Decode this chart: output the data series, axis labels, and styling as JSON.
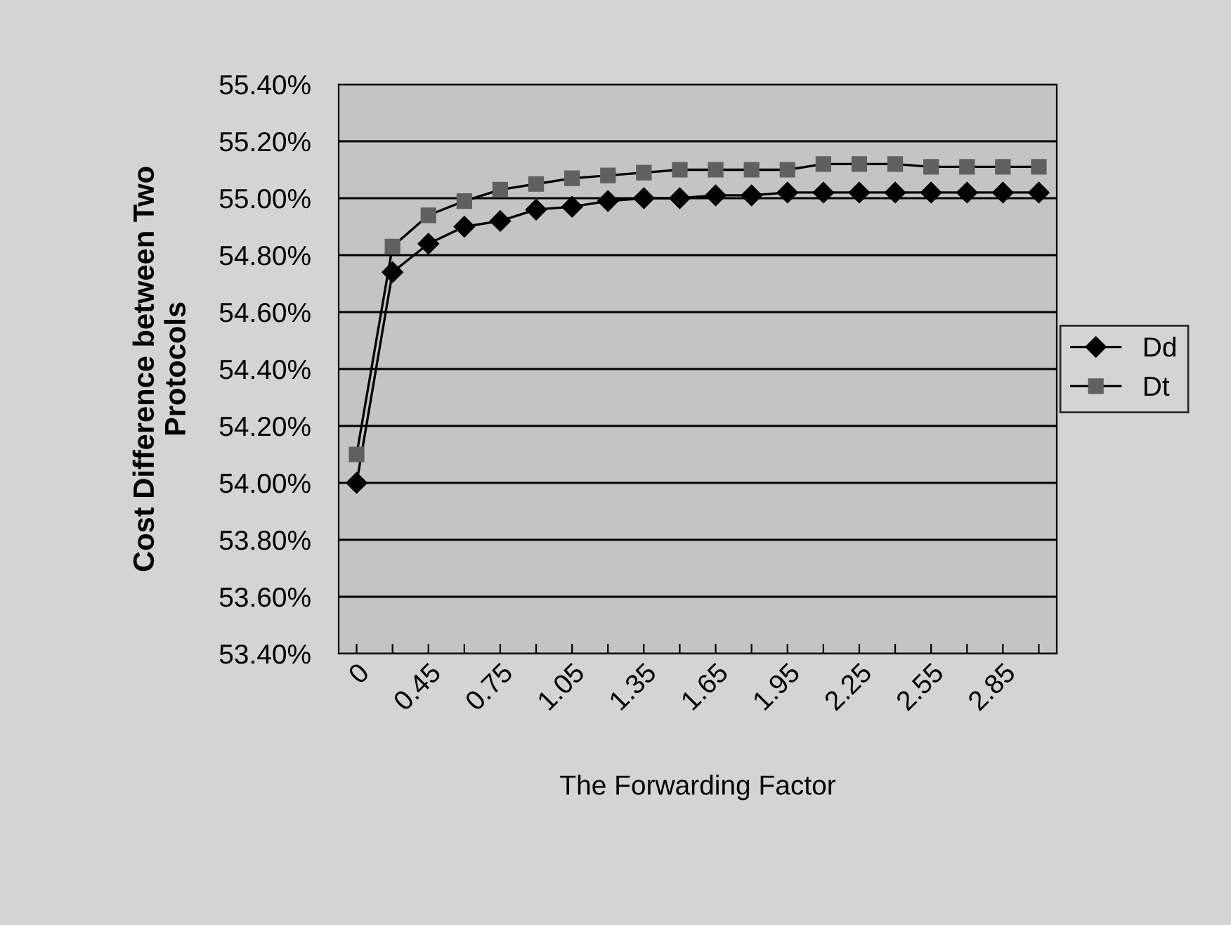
{
  "chart_data": {
    "type": "line",
    "xlabel": "The Forwarding Factor",
    "ylabel": "Cost Difference between Two\nProtocols",
    "categories": [
      "0",
      null,
      "0.45",
      null,
      "0.75",
      null,
      "1.05",
      null,
      "1.35",
      null,
      "1.65",
      null,
      "1.95",
      null,
      "2.25",
      null,
      "2.55",
      null,
      "2.85",
      null
    ],
    "series": [
      {
        "name": "Dd",
        "color": "#000000",
        "marker": "diamond",
        "values": [
          54.0,
          54.74,
          54.84,
          54.9,
          54.92,
          54.96,
          54.97,
          54.99,
          55.0,
          55.0,
          55.01,
          55.01,
          55.02,
          55.02,
          55.02,
          55.02,
          55.02,
          55.02,
          55.02,
          55.02
        ]
      },
      {
        "name": "Dt",
        "color": "#606060",
        "marker": "square",
        "values": [
          54.1,
          54.83,
          54.94,
          54.99,
          55.03,
          55.05,
          55.07,
          55.08,
          55.09,
          55.1,
          55.1,
          55.1,
          55.1,
          55.12,
          55.12,
          55.12,
          55.11,
          55.11,
          55.11,
          55.11
        ]
      }
    ],
    "ylim": [
      53.4,
      55.4
    ],
    "yticks": [
      {
        "value": 53.4,
        "label": "53.40%"
      },
      {
        "value": 53.6,
        "label": "53.60%"
      },
      {
        "value": 53.8,
        "label": "53.80%"
      },
      {
        "value": 54.0,
        "label": "54.00%"
      },
      {
        "value": 54.2,
        "label": "54.20%"
      },
      {
        "value": 54.4,
        "label": "54.40%"
      },
      {
        "value": 54.6,
        "label": "54.60%"
      },
      {
        "value": 54.8,
        "label": "54.80%"
      },
      {
        "value": 55.0,
        "label": "55.00%"
      },
      {
        "value": 55.2,
        "label": "55.20%"
      },
      {
        "value": 55.4,
        "label": "55.40%"
      }
    ],
    "grid": "y",
    "legend": "right",
    "line_style": "solid"
  }
}
